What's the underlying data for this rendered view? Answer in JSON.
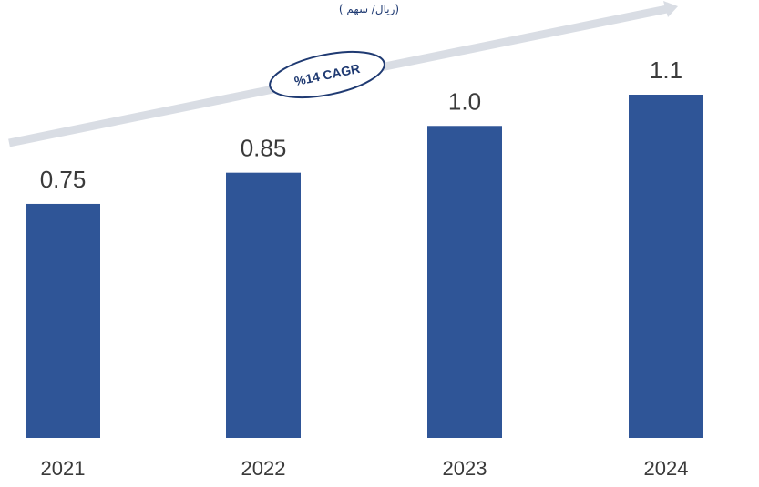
{
  "chart_data": {
    "type": "bar",
    "unit_label": "( ريال/ سهم)",
    "categories": [
      "2021",
      "2022",
      "2023",
      "2024"
    ],
    "values": [
      0.75,
      0.85,
      1.0,
      1.1
    ],
    "value_labels": [
      "0.75",
      "0.85",
      "1.0",
      "1.1"
    ],
    "ylim": [
      0,
      1.1
    ],
    "grid": false,
    "bar_color": "#2f5597",
    "trend_arrow": {
      "label": "%14 CAGR",
      "color": "#d9dde4",
      "ellipse_stroke": "#1f3a72"
    }
  }
}
